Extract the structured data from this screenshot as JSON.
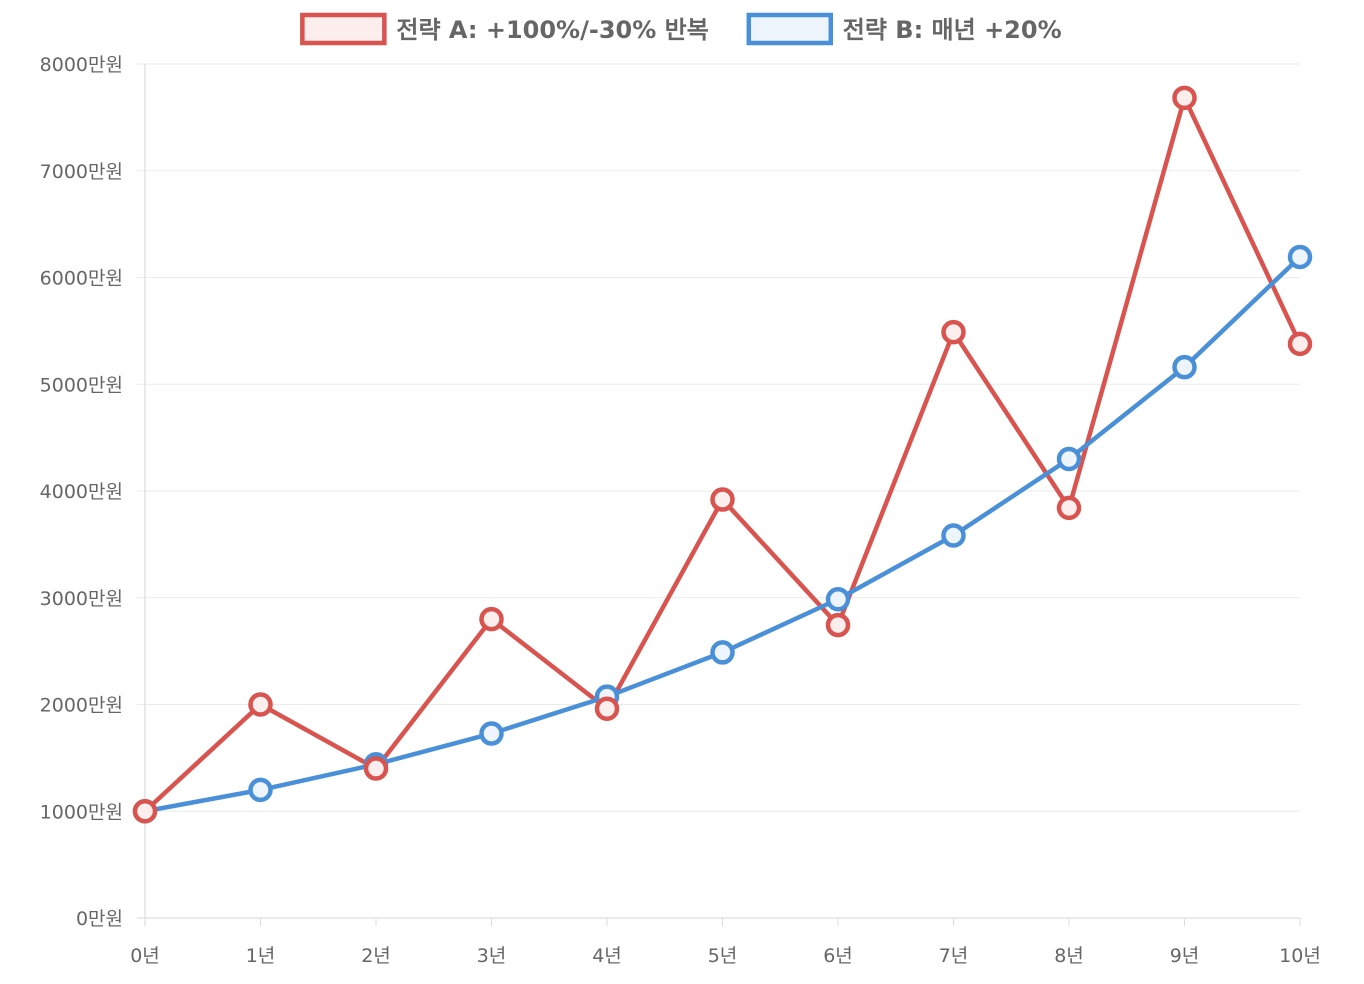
{
  "chart_data": {
    "type": "line",
    "title": "",
    "xlabel": "",
    "ylabel": "",
    "categories": [
      "0년",
      "1년",
      "2년",
      "3년",
      "4년",
      "5년",
      "6년",
      "7년",
      "8년",
      "9년",
      "10년"
    ],
    "y_ticks": [
      "0만원",
      "1000만원",
      "2000만원",
      "3000만원",
      "4000만원",
      "5000만원",
      "6000만원",
      "7000만원",
      "8000만원"
    ],
    "ylim": [
      0,
      8000
    ],
    "y_unit": "만원",
    "grid": true,
    "legend_position": "top",
    "series": [
      {
        "name": "전략 A: +100%/-30% 반복",
        "color": "#d9534f",
        "fill": "#fdeeee",
        "values": [
          1000,
          2000,
          1400,
          2800,
          1960,
          3920,
          2744,
          5488,
          3842,
          7683,
          5378
        ]
      },
      {
        "name": "전략 B: 매년 +20%",
        "color": "#4a90d9",
        "fill": "#eef4fb",
        "values": [
          1000,
          1200,
          1440,
          1728,
          2074,
          2488,
          2986,
          3583,
          4300,
          5160,
          6192
        ]
      }
    ]
  }
}
